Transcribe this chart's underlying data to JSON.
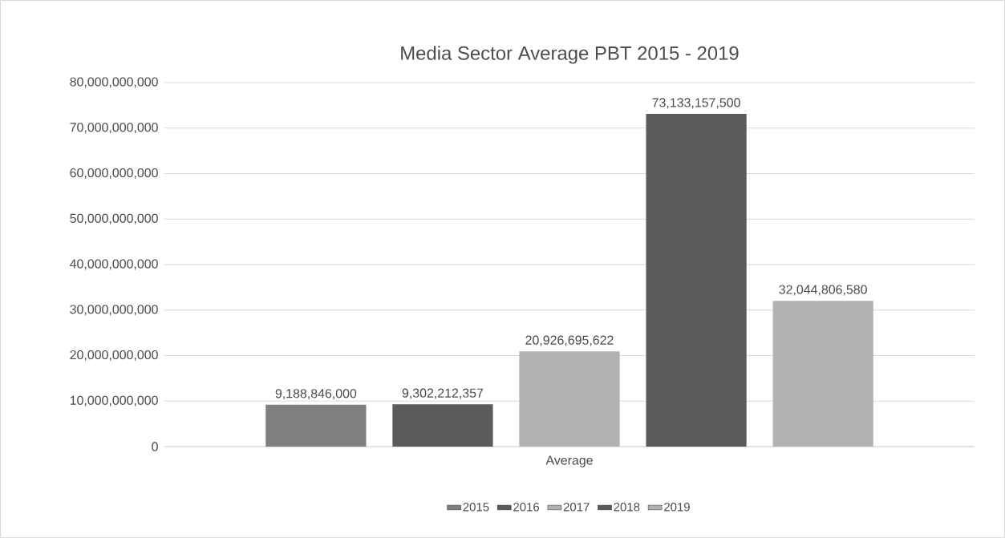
{
  "chart_data": {
    "type": "bar",
    "title": "Media Sector Average PBT 2015 - 2019",
    "categories": [
      "Average"
    ],
    "series": [
      {
        "name": "2015",
        "color": "#7f7f7f",
        "values": [
          9188846000
        ],
        "value_labels": [
          "9,188,846,000"
        ]
      },
      {
        "name": "2016",
        "color": "#5b5b5b",
        "values": [
          9302212357
        ],
        "value_labels": [
          "9,302,212,357"
        ]
      },
      {
        "name": "2017",
        "color": "#b2b2b2",
        "values": [
          20926695622
        ],
        "value_labels": [
          "20,926,695,622"
        ]
      },
      {
        "name": "2018",
        "color": "#5b5b5b",
        "values": [
          73133157500
        ],
        "value_labels": [
          "73,133,157,500"
        ]
      },
      {
        "name": "2019",
        "color": "#b2b2b2",
        "values": [
          32044806580
        ],
        "value_labels": [
          "32,044,806,580"
        ]
      }
    ],
    "ylim": [
      0,
      80000000000
    ],
    "yticks": [
      0,
      {
        "value": 10000000000,
        "label": "10,000,000,000"
      },
      {
        "value": 20000000000,
        "label": "20,000,000,000"
      },
      {
        "value": 30000000000,
        "label": "30,000,000,000"
      },
      {
        "value": 40000000000,
        "label": "40,000,000,000"
      },
      {
        "value": 50000000000,
        "label": "50,000,000,000"
      },
      {
        "value": 60000000000,
        "label": "60,000,000,000"
      },
      {
        "value": 70000000000,
        "label": "70,000,000,000"
      },
      {
        "value": 80000000000,
        "label": "80,000,000,000"
      }
    ],
    "grid": "y",
    "legend": "bottom"
  }
}
